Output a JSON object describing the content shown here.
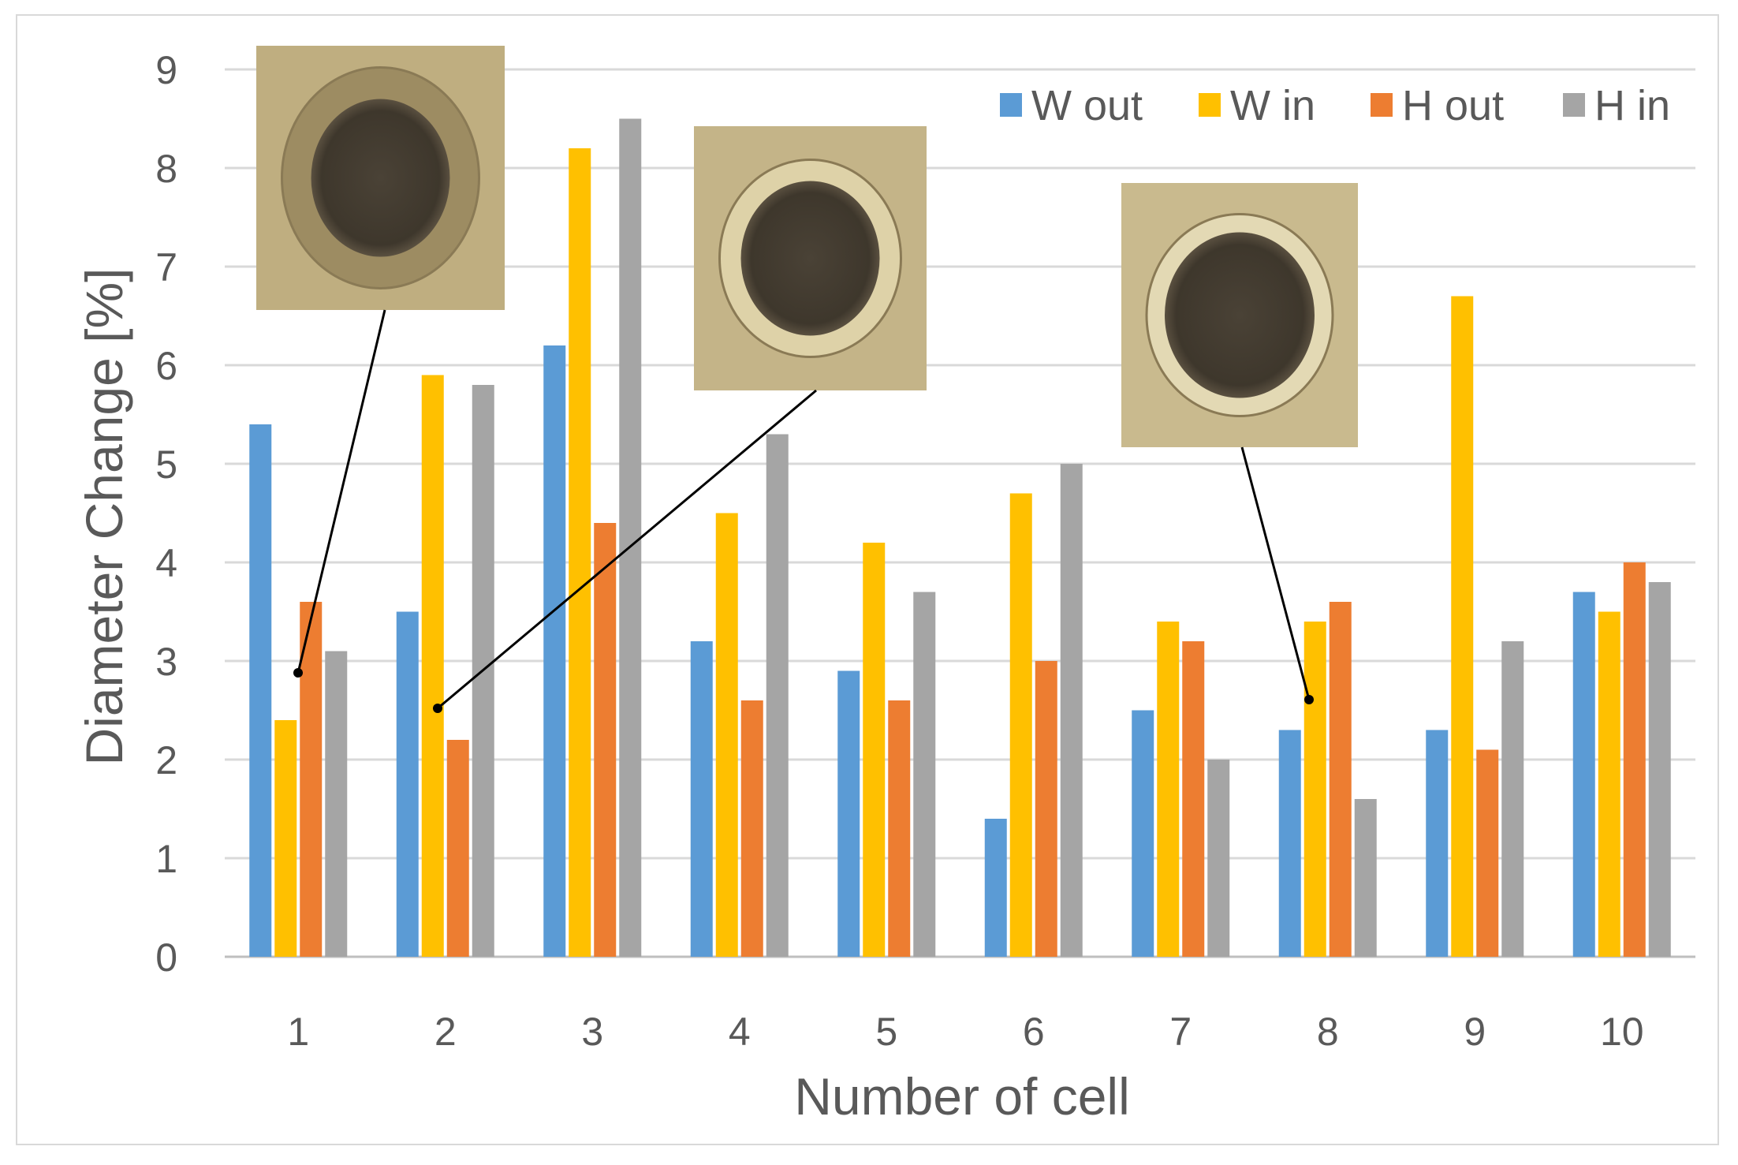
{
  "chart_data": {
    "type": "bar",
    "title": "",
    "xlabel": "Number of cell",
    "ylabel": "Diameter Change [%]",
    "ylim": [
      0,
      9
    ],
    "yticks": [
      0,
      1,
      2,
      3,
      4,
      5,
      6,
      7,
      8,
      9
    ],
    "grid": true,
    "legend_position": "top-right",
    "categories": [
      "1",
      "2",
      "3",
      "4",
      "5",
      "6",
      "7",
      "8",
      "9",
      "10"
    ],
    "series": [
      {
        "name": "W out",
        "color": "#5b9bd5",
        "values": [
          5.4,
          3.5,
          6.2,
          3.2,
          2.9,
          1.4,
          2.5,
          2.3,
          2.3,
          3.7
        ]
      },
      {
        "name": "W in",
        "color": "#ffc000",
        "values": [
          2.4,
          5.9,
          8.2,
          4.5,
          4.2,
          4.7,
          3.4,
          3.4,
          6.7,
          3.5
        ]
      },
      {
        "name": "H out",
        "color": "#ed7d31",
        "values": [
          3.6,
          2.2,
          4.4,
          2.6,
          2.6,
          3.0,
          3.2,
          3.6,
          2.1,
          4.0
        ]
      },
      {
        "name": "H in",
        "color": "#a5a5a5",
        "values": [
          3.1,
          5.8,
          8.5,
          5.3,
          3.7,
          5.0,
          2.0,
          1.6,
          3.2,
          3.8
        ]
      }
    ],
    "annotations": [
      {
        "description": "inset micrograph of cell 1",
        "points_to": {
          "category": "1",
          "value": 2.9
        }
      },
      {
        "description": "inset micrograph of cell 2",
        "points_to": {
          "category": "2",
          "value": 2.5
        }
      },
      {
        "description": "inset micrograph of cell 8",
        "points_to": {
          "category": "8",
          "value": 2.6
        }
      }
    ]
  }
}
